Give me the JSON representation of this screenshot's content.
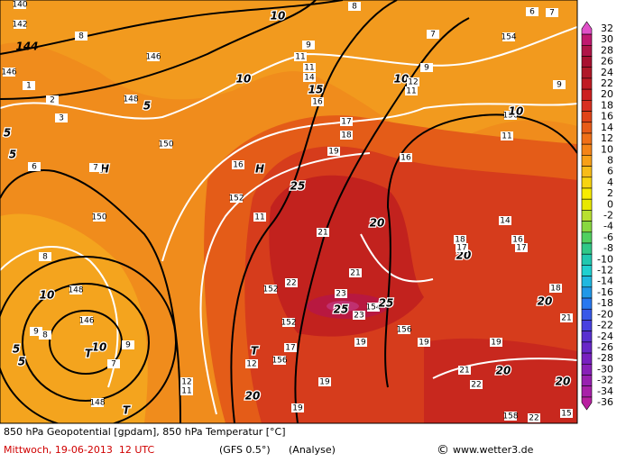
{
  "colorbar": {
    "levels": [
      32,
      30,
      28,
      26,
      24,
      22,
      20,
      18,
      16,
      14,
      12,
      10,
      8,
      6,
      4,
      2,
      0,
      -2,
      -4,
      -6,
      -8,
      -10,
      -12,
      -14,
      -16,
      -18,
      -20,
      -22,
      -24,
      -26,
      -28,
      -30,
      -32,
      -34,
      -36
    ],
    "colors": [
      "#e050c8",
      "#c01870",
      "#b01448",
      "#a81030",
      "#b01828",
      "#c01c24",
      "#cc2020",
      "#d83020",
      "#e04418",
      "#e85c18",
      "#f07018",
      "#f48418",
      "#f8a018",
      "#f8bc18",
      "#f8d410",
      "#f8ec00",
      "#e8e800",
      "#b8e030",
      "#88d840",
      "#50d060",
      "#30c888",
      "#20c8b0",
      "#20d0d0",
      "#20b8e0",
      "#2098e8",
      "#2878f0",
      "#3858e8",
      "#4840e0",
      "#5830d0",
      "#6828c8",
      "#7820c0",
      "#8820b8",
      "#9820b0",
      "#a820a8",
      "#b820a0"
    ]
  },
  "map_labels": [
    "140",
    "142",
    "144",
    "146",
    "146",
    "148",
    "150",
    "150",
    "152",
    "152",
    "152",
    "154",
    "156",
    "156",
    "148",
    "146",
    "148",
    "154",
    "156",
    "158",
    "10",
    "10",
    "5",
    "5",
    "5",
    "15",
    "10",
    "10",
    "25",
    "20",
    "20",
    "25",
    "25",
    "10",
    "10",
    "5",
    "5",
    "20",
    "20",
    "20",
    "20",
    "H",
    "H",
    "T",
    "T",
    "T",
    "8",
    "7",
    "9",
    "11",
    "11",
    "14",
    "16",
    "17",
    "18",
    "19",
    "16",
    "11",
    "21",
    "21",
    "23",
    "23",
    "22",
    "19",
    "19",
    "19",
    "21",
    "22",
    "22",
    "15",
    "19",
    "19",
    "18",
    "21",
    "14",
    "16",
    "17",
    "18",
    "17",
    "11",
    "12",
    "11",
    "8",
    "9",
    "8",
    "9",
    "7",
    "7",
    "6",
    "2",
    "3",
    "1",
    "8",
    "9",
    "7",
    "6",
    "11",
    "12",
    "9",
    "16",
    "12",
    "17"
  ],
  "footer": {
    "line1": "850 hPa Geopotential [gpdam], 850 hPa Temperatur [°C]",
    "date": "Mittwoch, 19-06-2013  12 UTC",
    "model": "(GFS 0.5°)",
    "run": "(Analyse)",
    "copyright": "©",
    "site": "www.wetter3.de"
  }
}
